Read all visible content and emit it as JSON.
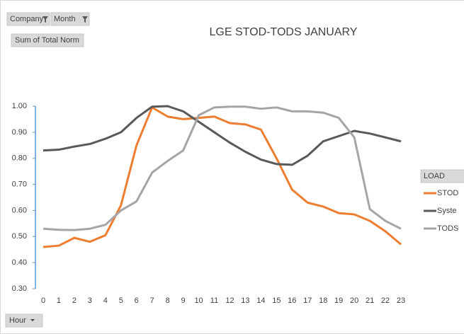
{
  "chart_data": {
    "type": "line",
    "title": "LGE STOD-TODS JANUARY",
    "filter_buttons": [
      "Company",
      "Month"
    ],
    "value_field": "Sum of Total Norm",
    "axis_field": "Hour",
    "legend_title": "LOAD",
    "categories": [
      "0",
      "1",
      "2",
      "3",
      "4",
      "5",
      "6",
      "7",
      "8",
      "9",
      "10",
      "11",
      "12",
      "13",
      "14",
      "15",
      "16",
      "17",
      "18",
      "19",
      "20",
      "21",
      "22",
      "23"
    ],
    "series": [
      {
        "name": "STOD",
        "color": "#ed7d31",
        "values": [
          0.46,
          0.465,
          0.495,
          0.48,
          0.505,
          0.62,
          0.85,
          0.995,
          0.96,
          0.95,
          0.955,
          0.96,
          0.935,
          0.93,
          0.91,
          0.8,
          0.68,
          0.63,
          0.615,
          0.59,
          0.585,
          0.56,
          0.52,
          0.47
        ]
      },
      {
        "name": "Syste",
        "color": "#595959",
        "values": [
          0.83,
          0.833,
          0.845,
          0.855,
          0.875,
          0.9,
          0.955,
          0.998,
          1.0,
          0.98,
          0.94,
          0.9,
          0.86,
          0.825,
          0.795,
          0.778,
          0.775,
          0.81,
          0.865,
          0.885,
          0.905,
          0.895,
          0.88,
          0.865
        ]
      },
      {
        "name": "TODS",
        "color": "#a5a5a5",
        "values": [
          0.53,
          0.526,
          0.525,
          0.53,
          0.545,
          0.6,
          0.635,
          0.745,
          0.79,
          0.83,
          0.965,
          0.995,
          0.998,
          0.998,
          0.99,
          0.995,
          0.98,
          0.98,
          0.975,
          0.955,
          0.88,
          0.605,
          0.56,
          0.53
        ]
      }
    ],
    "ylim": [
      0.3,
      1.0
    ],
    "yticks": [
      {
        "value": 0.3,
        "label": "0.30"
      },
      {
        "value": 0.4,
        "label": "0.40"
      },
      {
        "value": 0.5,
        "label": "0.50"
      },
      {
        "value": 0.6,
        "label": "0.60"
      },
      {
        "value": 0.7,
        "label": "0.70"
      },
      {
        "value": 0.8,
        "label": "0.80"
      },
      {
        "value": 0.9,
        "label": "0.90"
      },
      {
        "value": 1.0,
        "label": "1.00"
      }
    ],
    "grid": false
  }
}
